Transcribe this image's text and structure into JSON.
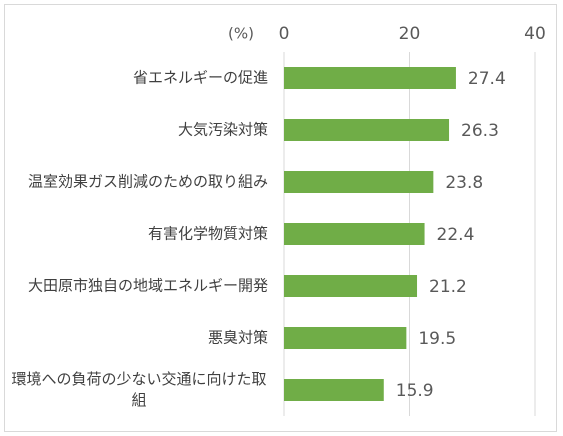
{
  "chart_data": {
    "type": "bar",
    "orientation": "horizontal",
    "unit_label": "(%)",
    "categories": [
      "省エネルギーの促進",
      "大気汚染対策",
      "温室効果ガス削減のための取り組み",
      "有害化学物質対策",
      "大田原市独自の地域エネルギー開発",
      "悪臭対策",
      "環境への負荷の少ない交通に向けた取組"
    ],
    "values": [
      27.4,
      26.3,
      23.8,
      22.4,
      21.2,
      19.5,
      15.9
    ],
    "color": "#70ad47",
    "xlim": [
      0,
      40
    ],
    "xticks": [
      0,
      20,
      40
    ],
    "grid": true
  }
}
